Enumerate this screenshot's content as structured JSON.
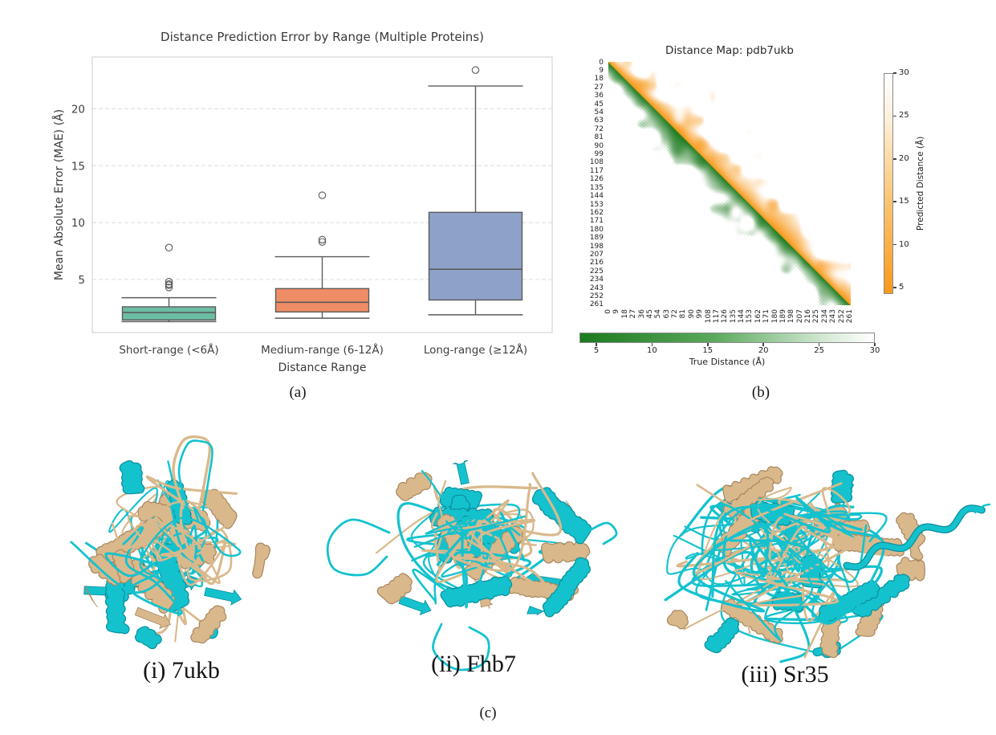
{
  "captions": {
    "a": "(a)",
    "b": "(b)",
    "c": "(c)"
  },
  "chart_data": [
    {
      "id": "error_boxplot",
      "type": "boxplot",
      "title": "Distance Prediction Error by Range (Multiple Proteins)",
      "xlabel": "Distance Range",
      "ylabel": "Mean Absolute Error (MAE) (Å)",
      "categories": [
        "Short-range (<6Å)",
        "Medium-range (6-12Å)",
        "Long-range (≥12Å)"
      ],
      "yticks": [
        5,
        10,
        15,
        20
      ],
      "ylim": [
        0.3,
        24.6
      ],
      "grid": "horizontal-dashed",
      "legend_position": "none",
      "box_colors": [
        "#6cbda4",
        "#ef8d66",
        "#8ea2c9"
      ],
      "edge_color": "#5b5b5b",
      "series": [
        {
          "label": "Short-range (<6Å)",
          "whislo": 1.3,
          "q1": 1.45,
          "med": 2.1,
          "q3": 2.6,
          "whishi": 3.4,
          "outliers": [
            4.3,
            4.5,
            4.6,
            4.8,
            7.8
          ]
        },
        {
          "label": "Medium-range (6-12Å)",
          "whislo": 1.6,
          "q1": 2.15,
          "med": 3.0,
          "q3": 4.2,
          "whishi": 7.0,
          "outliers": [
            8.3,
            8.5,
            12.4
          ]
        },
        {
          "label": "Long-range (≥12Å)",
          "whislo": 1.9,
          "q1": 3.2,
          "med": 5.9,
          "q3": 10.9,
          "whishi": 22.0,
          "outliers": [
            23.4
          ]
        }
      ]
    },
    {
      "id": "distance_map",
      "type": "heatmap",
      "title": "Distance Map: pdb7ukb",
      "n_residues": 262,
      "axis_ticks": [
        0,
        9,
        18,
        27,
        36,
        45,
        54,
        63,
        72,
        81,
        90,
        99,
        108,
        117,
        126,
        135,
        144,
        153,
        162,
        171,
        180,
        189,
        198,
        207,
        216,
        225,
        234,
        243,
        252,
        261
      ],
      "upper_triangle": {
        "quantity": "Predicted Distance (Å)",
        "color_low": "#f8991b",
        "color_high": "#ffffff"
      },
      "lower_triangle": {
        "quantity": "True Distance (Å)",
        "color_low": "#1c7a1e",
        "color_high": "#ffffff"
      },
      "colorbar_right": {
        "label": "Predicted Distance (Å)",
        "ticks": [
          5,
          10,
          15,
          20,
          25,
          30
        ],
        "range": [
          4,
          30
        ]
      },
      "colorbar_bottom": {
        "label": "True Distance (Å)",
        "ticks": [
          5,
          10,
          15,
          20,
          25,
          30
        ],
        "range": [
          3.5,
          30
        ]
      },
      "note": "Residue-residue distance map: upper-right triangle = predicted distances (orange scale), lower-left triangle = true distances (green scale), clipped at 30 Å."
    }
  ],
  "panel_c": {
    "items": [
      {
        "label": "(i) 7ukb"
      },
      {
        "label": "(ii) Fhb7"
      },
      {
        "label": "(iii) Sr35"
      }
    ],
    "ribbon_colors": {
      "cyan": "#14c2ce",
      "cyan_dark": "#0a8f9b",
      "wheat": "#d9b98c",
      "wheat_dark": "#a8875f"
    }
  }
}
